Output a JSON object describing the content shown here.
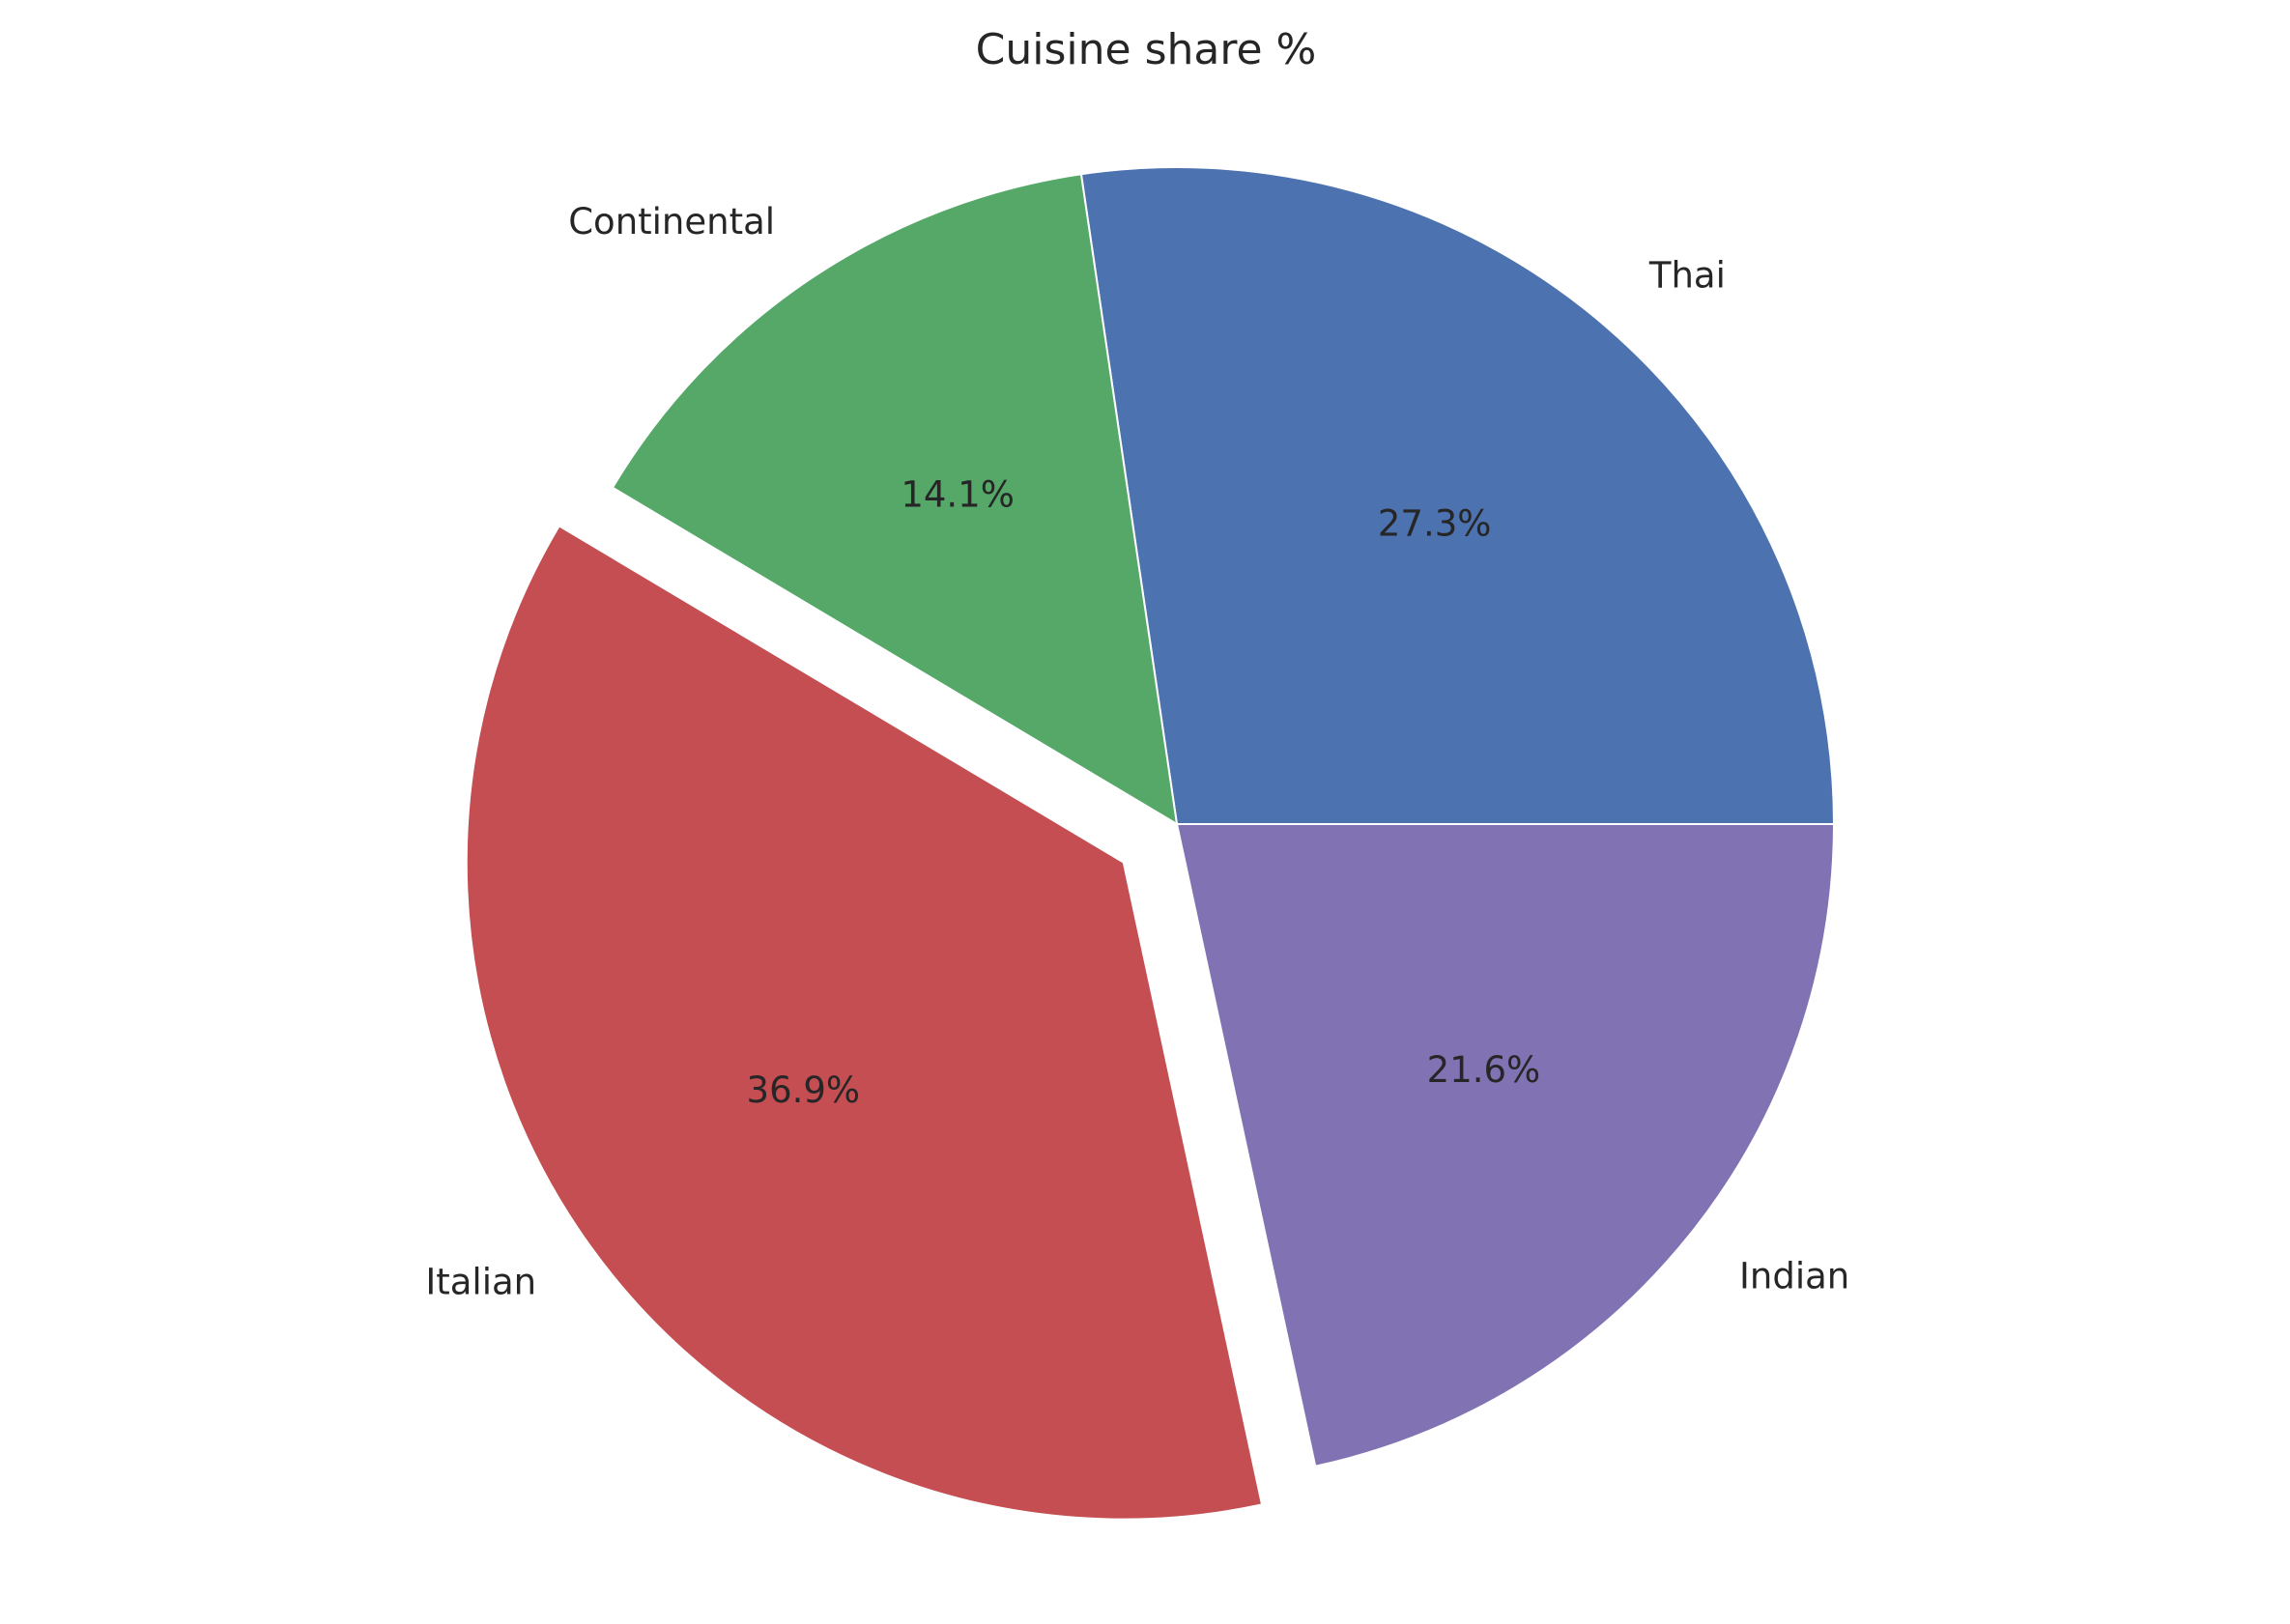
{
  "chart_data": {
    "type": "pie",
    "title": "Cuisine share %",
    "start_angle_deg": 0,
    "direction": "counterclockwise",
    "slices": [
      {
        "label": "Thai",
        "value": 27.3,
        "pct_text": "27.3%",
        "color": "#4c72b0",
        "explode": 0
      },
      {
        "label": "Continental",
        "value": 14.1,
        "pct_text": "14.1%",
        "color": "#55a868",
        "explode": 0
      },
      {
        "label": "Italian",
        "value": 36.9,
        "pct_text": "36.9%",
        "color": "#c44e52",
        "explode": 0.1
      },
      {
        "label": "Indian",
        "value": 21.6,
        "pct_text": "21.6%",
        "color": "#8172b3",
        "explode": 0
      }
    ]
  }
}
